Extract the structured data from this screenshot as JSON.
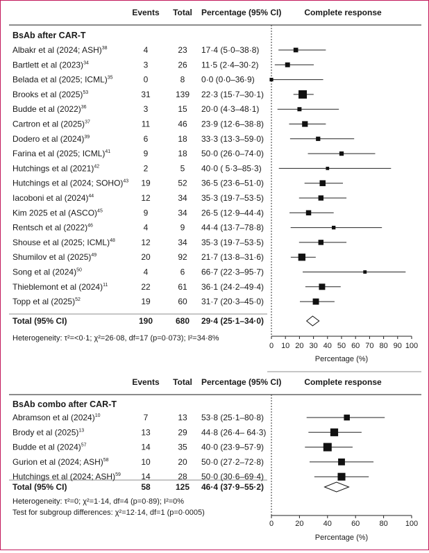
{
  "chart_data": [
    {
      "type": "forest",
      "section_title": "BsAb after CAR-T",
      "columns": {
        "events": "Events",
        "total": "Total",
        "pct": "Percentage (95% CI)",
        "plot": "Complete response"
      },
      "studies": [
        {
          "name": "Albakr et al (2024; ASH)",
          "ref": "38",
          "events": "4",
          "total": "23",
          "ci_text": "17·4 (5·0–38·8)",
          "est": 17.4,
          "lo": 5.0,
          "hi": 38.8
        },
        {
          "name": "Bartlett et al (2023)",
          "ref": "34",
          "events": "3",
          "total": "26",
          "ci_text": "11·5 (2·4–30·2)",
          "est": 11.5,
          "lo": 2.4,
          "hi": 30.2
        },
        {
          "name": "Belada et al (2025; ICML)",
          "ref": "35",
          "events": "0",
          "total": "8",
          "ci_text": "0·0 (0·0–36·9)",
          "est": 0.0,
          "lo": 0.0,
          "hi": 36.9
        },
        {
          "name": "Brooks et al (2025)",
          "ref": "53",
          "events": "31",
          "total": "139",
          "ci_text": "22·3 (15·7–30·1)",
          "est": 22.3,
          "lo": 15.7,
          "hi": 30.1
        },
        {
          "name": "Budde et al (2022)",
          "ref": "36",
          "events": "3",
          "total": "15",
          "ci_text": "20·0 (4·3–48·1)",
          "est": 20.0,
          "lo": 4.3,
          "hi": 48.1
        },
        {
          "name": "Cartron et al (2025)",
          "ref": "37",
          "events": "11",
          "total": "46",
          "ci_text": "23·9 (12·6–38·8)",
          "est": 23.9,
          "lo": 12.6,
          "hi": 38.8
        },
        {
          "name": "Dodero et al (2024)",
          "ref": "39",
          "events": "6",
          "total": "18",
          "ci_text": "33·3 (13·3–59·0)",
          "est": 33.3,
          "lo": 13.3,
          "hi": 59.0
        },
        {
          "name": "Farina et al (2025; ICML)",
          "ref": "41",
          "events": "9",
          "total": "18",
          "ci_text": "50·0 (26·0–74·0)",
          "est": 50.0,
          "lo": 26.0,
          "hi": 74.0
        },
        {
          "name": "Hutchings et al (2021)",
          "ref": "42",
          "events": "2",
          "total": "5",
          "ci_text": "40·0 ( 5·3–85·3)",
          "est": 40.0,
          "lo": 5.3,
          "hi": 85.3
        },
        {
          "name": "Hutchings et al (2024; SOHO)",
          "ref": "43",
          "events": "19",
          "total": "52",
          "ci_text": "36·5 (23·6–51·0)",
          "est": 36.5,
          "lo": 23.6,
          "hi": 51.0
        },
        {
          "name": "Iacoboni et al (2024)",
          "ref": "44",
          "events": "12",
          "total": "34",
          "ci_text": "35·3 (19·7–53·5)",
          "est": 35.3,
          "lo": 19.7,
          "hi": 53.5
        },
        {
          "name": "Kim 2025 et al (ASCO)",
          "ref": "45",
          "events": "9",
          "total": "34",
          "ci_text": "26·5 (12·9–44·4)",
          "est": 26.5,
          "lo": 12.9,
          "hi": 44.4
        },
        {
          "name": "Rentsch et al (2022)",
          "ref": "46",
          "events": "4",
          "total": "9",
          "ci_text": "44·4 (13·7–78·8)",
          "est": 44.4,
          "lo": 13.7,
          "hi": 78.8
        },
        {
          "name": "Shouse et al (2025; ICML)",
          "ref": "48",
          "events": "12",
          "total": "34",
          "ci_text": "35·3 (19·7–53·5)",
          "est": 35.3,
          "lo": 19.7,
          "hi": 53.5
        },
        {
          "name": "Shumilov et al (2025)",
          "ref": "49",
          "events": "20",
          "total": "92",
          "ci_text": "21·7 (13·8–31·6)",
          "est": 21.7,
          "lo": 13.8,
          "hi": 31.6
        },
        {
          "name": "Song et al (2024)",
          "ref": "50",
          "events": "4",
          "total": "6",
          "ci_text": "66·7 (22·3–95·7)",
          "est": 66.7,
          "lo": 22.3,
          "hi": 95.7
        },
        {
          "name": "Thieblemont et al (2024)",
          "ref": "11",
          "events": "22",
          "total": "61",
          "ci_text": "36·1 (24·2–49·4)",
          "est": 36.1,
          "lo": 24.2,
          "hi": 49.4
        },
        {
          "name": "Topp et al (2025)",
          "ref": "52",
          "events": "19",
          "total": "60",
          "ci_text": "31·7 (20·3–45·0)",
          "est": 31.7,
          "lo": 20.3,
          "hi": 45.0
        }
      ],
      "total": {
        "label": "Total (95% CI)",
        "events": "190",
        "total": "680",
        "ci_text": "29·4 (25·1–34·0)",
        "est": 29.4,
        "lo": 25.1,
        "hi": 34.0
      },
      "notes": [
        "Heterogeneity: τ²=<0·1; χ²=26·08, df=17 (p=0·073); I²=34·8%"
      ],
      "x_axis": {
        "label": "Percentage (%)",
        "min": 0,
        "max": 100,
        "ticks": [
          "0",
          "10",
          "20",
          "30",
          "40",
          "50",
          "60",
          "70",
          "80",
          "90",
          "100"
        ]
      }
    },
    {
      "type": "forest",
      "section_title": "BsAb combo after CAR-T",
      "columns": {
        "events": "Events",
        "total": "Total",
        "pct": "Percentage (95% CI)",
        "plot": "Complete response"
      },
      "studies": [
        {
          "name": "Abramson et al (2024)",
          "ref": "10",
          "events": "7",
          "total": "13",
          "ci_text": "53·8 (25·1–80·8)",
          "est": 53.8,
          "lo": 25.1,
          "hi": 80.8
        },
        {
          "name": "Brody et al (2025)",
          "ref": "13",
          "events": "13",
          "total": "29",
          "ci_text": "44·8 (26·4– 64·3)",
          "est": 44.8,
          "lo": 26.4,
          "hi": 64.3
        },
        {
          "name": "Budde et al (2024)",
          "ref": "57",
          "events": "14",
          "total": "35",
          "ci_text": "40·0 (23·9–57·9)",
          "est": 40.0,
          "lo": 23.9,
          "hi": 57.9
        },
        {
          "name": "Gurion et al (2024; ASH)",
          "ref": "58",
          "events": "10",
          "total": "20",
          "ci_text": "50·0 (27·2–72·8)",
          "est": 50.0,
          "lo": 27.2,
          "hi": 72.8
        },
        {
          "name": "Hutchings et al (2024; ASH)",
          "ref": "59",
          "events": "14",
          "total": "28",
          "ci_text": "50·0 (30·6–69·4)",
          "est": 50.0,
          "lo": 30.6,
          "hi": 69.4
        }
      ],
      "total": {
        "label": "Total (95% CI)",
        "events": "58",
        "total": "125",
        "ci_text": "46·4 (37·9–55·2)",
        "est": 46.4,
        "lo": 37.9,
        "hi": 55.2
      },
      "notes": [
        "Heterogeneity: τ²=0; χ²=1·14, df=4 (p=0·89); I²=0%",
        "Test for subgroup differences: χ²=12·14, df=1 (p=0·0005)"
      ],
      "x_axis": {
        "label": "Percentage (%)",
        "min": 0,
        "max": 100,
        "ticks": [
          "0",
          "20",
          "40",
          "60",
          "80",
          "100"
        ]
      }
    }
  ]
}
